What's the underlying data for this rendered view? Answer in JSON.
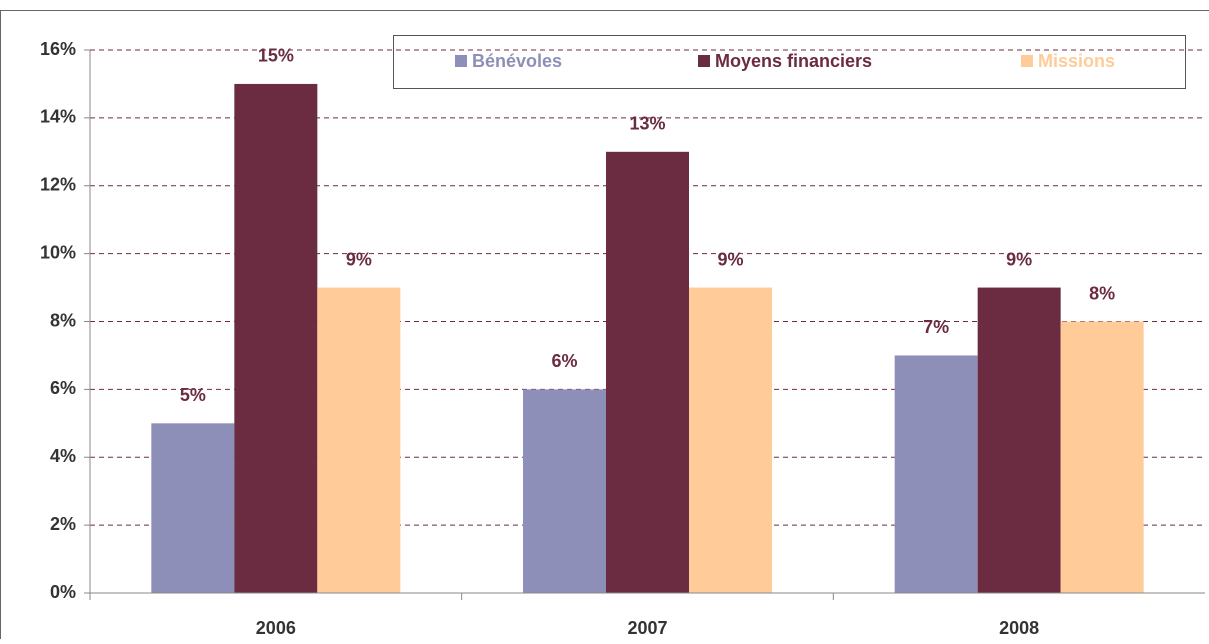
{
  "chart_data": {
    "type": "bar",
    "categories": [
      "2006",
      "2007",
      "2008"
    ],
    "series": [
      {
        "name": "Bénévoles",
        "color": "#8e8fb8",
        "values": [
          5,
          6,
          7
        ],
        "value_labels": [
          "5%",
          "6%",
          "7%"
        ]
      },
      {
        "name": "Moyens financiers",
        "color": "#6b2b40",
        "values": [
          15,
          13,
          9
        ],
        "value_labels": [
          "15%",
          "13%",
          "9%"
        ]
      },
      {
        "name": "Missions",
        "color": "#ffcc99",
        "values": [
          9,
          9,
          8
        ],
        "value_labels": [
          "9%",
          "9%",
          "8%"
        ]
      }
    ],
    "ylim": [
      0,
      16
    ],
    "yticks": [
      {
        "value": 0,
        "label": "0%"
      },
      {
        "value": 2,
        "label": "2%"
      },
      {
        "value": 4,
        "label": "4%"
      },
      {
        "value": 6,
        "label": "6%"
      },
      {
        "value": 8,
        "label": "8%"
      },
      {
        "value": 10,
        "label": "10%"
      },
      {
        "value": 12,
        "label": "12%"
      },
      {
        "value": 14,
        "label": "14%"
      },
      {
        "value": 16,
        "label": "16%"
      }
    ],
    "grid": true,
    "legend": "top"
  }
}
